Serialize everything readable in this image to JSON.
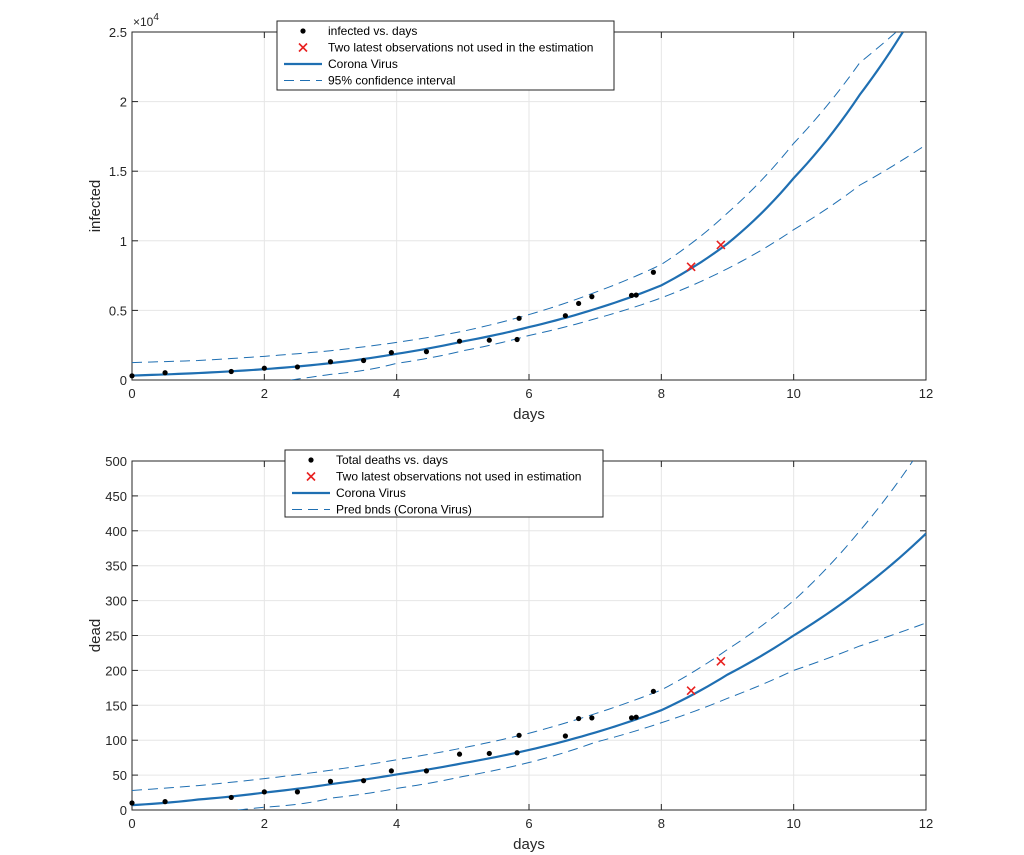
{
  "chart_data": [
    {
      "type": "scatter",
      "xlabel": "days",
      "ylabel": "infected",
      "xlim": [
        0,
        12
      ],
      "ylim": [
        0,
        2.5
      ],
      "y_exponent": "×10",
      "y_exponent_power": "4",
      "xticks": [
        "0",
        "2",
        "4",
        "6",
        "8",
        "10",
        "12"
      ],
      "yticks": [
        "0",
        "0.5",
        "1",
        "1.5",
        "2",
        "2.5"
      ],
      "grid": true,
      "legend_position": "top-center",
      "legend": [
        "infected vs. days",
        "Two latest observations not used in the estimation",
        "Corona Virus",
        "95% confidence interval"
      ],
      "colors": {
        "data": "#000000",
        "excluded": "#e8201f",
        "fit": "#1f6fb2"
      },
      "observations": {
        "x": [
          0,
          0.5,
          1.5,
          2.0,
          2.5,
          3.0,
          3.5,
          3.92,
          4.45,
          4.95,
          5.4,
          5.82,
          5.85,
          6.55,
          6.75,
          6.95,
          7.55,
          7.62,
          7.88
        ],
        "y": [
          0.03,
          0.052,
          0.061,
          0.085,
          0.094,
          0.131,
          0.14,
          0.197,
          0.204,
          0.279,
          0.286,
          0.291,
          0.443,
          0.462,
          0.55,
          0.599,
          0.608,
          0.61,
          0.774
        ]
      },
      "excluded_observations": {
        "x": [
          8.45,
          8.9
        ],
        "y": [
          0.813,
          0.97
        ]
      },
      "fit": {
        "x": [
          0,
          1,
          2,
          3,
          4,
          5,
          6,
          7,
          8,
          9,
          10,
          11,
          11.65
        ],
        "y": [
          0.032,
          0.05,
          0.078,
          0.121,
          0.188,
          0.277,
          0.38,
          0.51,
          0.68,
          0.98,
          1.45,
          2.05,
          2.5
        ]
      },
      "upper_bound": {
        "x": [
          0,
          1,
          2,
          3,
          4,
          5,
          6,
          7,
          8,
          9,
          10,
          11,
          11.55
        ],
        "y": [
          0.125,
          0.14,
          0.17,
          0.21,
          0.27,
          0.35,
          0.47,
          0.63,
          0.83,
          1.2,
          1.7,
          2.28,
          2.5
        ]
      },
      "lower_bound": {
        "x": [
          2.4,
          3,
          4,
          5,
          6,
          7,
          8,
          9,
          10,
          11,
          12
        ],
        "y": [
          0.0,
          0.04,
          0.12,
          0.21,
          0.32,
          0.44,
          0.59,
          0.8,
          1.08,
          1.4,
          1.69
        ]
      }
    },
    {
      "type": "scatter",
      "xlabel": "days",
      "ylabel": "dead",
      "xlim": [
        0,
        12
      ],
      "ylim": [
        0,
        500
      ],
      "xticks": [
        "0",
        "2",
        "4",
        "6",
        "8",
        "10",
        "12"
      ],
      "yticks": [
        "0",
        "50",
        "100",
        "150",
        "200",
        "250",
        "300",
        "350",
        "400",
        "450",
        "500"
      ],
      "grid": true,
      "legend_position": "top-center",
      "legend": [
        "Total deaths vs. days",
        "Two latest observations not used in estimation",
        "Corona Virus",
        "Pred bnds (Corona Virus)"
      ],
      "colors": {
        "data": "#000000",
        "excluded": "#e8201f",
        "fit": "#1f6fb2"
      },
      "observations": {
        "x": [
          0,
          0.5,
          1.5,
          2.0,
          2.5,
          3.0,
          3.5,
          3.92,
          4.45,
          4.95,
          5.4,
          5.82,
          5.85,
          6.55,
          6.75,
          6.95,
          7.55,
          7.62,
          7.88
        ],
        "y": [
          10,
          12,
          18,
          26,
          26,
          41,
          42,
          56,
          56,
          80,
          81,
          82,
          107,
          106,
          131,
          132,
          132,
          133,
          170
        ]
      },
      "excluded_observations": {
        "x": [
          8.45,
          8.9
        ],
        "y": [
          171,
          213
        ]
      },
      "fit": {
        "x": [
          0,
          1,
          2,
          3,
          4,
          5,
          6,
          7,
          8,
          9,
          10,
          11,
          12
        ],
        "y": [
          7,
          15,
          25,
          37,
          51,
          67,
          86,
          111,
          143,
          194,
          250,
          315,
          396
        ]
      },
      "upper_bound": {
        "x": [
          0,
          1,
          2,
          3,
          4,
          5,
          6,
          7,
          8,
          9,
          10,
          11,
          11.8
        ],
        "y": [
          28,
          35,
          45,
          57,
          72,
          89,
          110,
          138,
          172,
          230,
          300,
          400,
          500
        ]
      },
      "lower_bound": {
        "x": [
          1.6,
          2,
          3,
          4,
          5,
          6,
          7,
          8,
          9,
          10,
          11,
          12
        ],
        "y": [
          0,
          4,
          17,
          31,
          48,
          68,
          97,
          125,
          160,
          200,
          235,
          268
        ]
      }
    }
  ]
}
